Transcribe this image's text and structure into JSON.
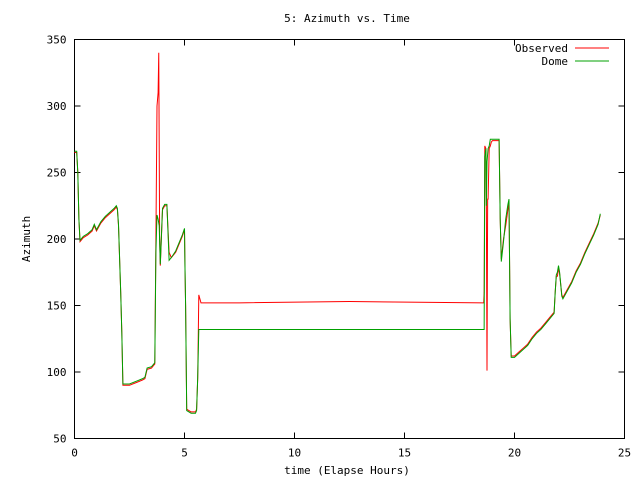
{
  "chart_data": {
    "type": "line",
    "title": "5: Azimuth vs. Time",
    "xlabel": "time (Elapse Hours)",
    "ylabel": "Azimuth",
    "xlim": [
      0,
      25
    ],
    "ylim": [
      50,
      350
    ],
    "xticks": [
      0,
      5,
      10,
      15,
      20,
      25
    ],
    "yticks": [
      50,
      100,
      150,
      200,
      250,
      300,
      350
    ],
    "grid": false,
    "legend_position": "top-right",
    "series": [
      {
        "name": "Observed",
        "color": "#ff0000",
        "points": [
          [
            0,
            265
          ],
          [
            0.1,
            265
          ],
          [
            0.15,
            250
          ],
          [
            0.2,
            215
          ],
          [
            0.25,
            198
          ],
          [
            0.4,
            201
          ],
          [
            0.6,
            203
          ],
          [
            0.8,
            206
          ],
          [
            0.9,
            210
          ],
          [
            1.0,
            206
          ],
          [
            1.2,
            212
          ],
          [
            1.4,
            216
          ],
          [
            1.6,
            219
          ],
          [
            1.8,
            222
          ],
          [
            1.9,
            224
          ],
          [
            1.95,
            222
          ],
          [
            2.0,
            210
          ],
          [
            2.1,
            160
          ],
          [
            2.15,
            130
          ],
          [
            2.2,
            90
          ],
          [
            2.5,
            90
          ],
          [
            2.8,
            92
          ],
          [
            3.1,
            94
          ],
          [
            3.2,
            95
          ],
          [
            3.3,
            102
          ],
          [
            3.5,
            103
          ],
          [
            3.6,
            105
          ],
          [
            3.65,
            106
          ],
          [
            3.7,
            200
          ],
          [
            3.75,
            300
          ],
          [
            3.8,
            310
          ],
          [
            3.83,
            340
          ],
          [
            3.87,
            200
          ],
          [
            3.9,
            180
          ],
          [
            4.0,
            222
          ],
          [
            4.1,
            225
          ],
          [
            4.2,
            225
          ],
          [
            4.3,
            190
          ],
          [
            4.4,
            186
          ],
          [
            4.6,
            190
          ],
          [
            4.8,
            198
          ],
          [
            4.9,
            202
          ],
          [
            5.0,
            207
          ],
          [
            5.02,
            180
          ],
          [
            5.05,
            150
          ],
          [
            5.1,
            72
          ],
          [
            5.3,
            70
          ],
          [
            5.5,
            70
          ],
          [
            5.55,
            72
          ],
          [
            5.6,
            95
          ],
          [
            5.65,
            158
          ],
          [
            5.7,
            155
          ],
          [
            5.75,
            152
          ],
          [
            7.5,
            152
          ],
          [
            12.5,
            153
          ],
          [
            18.6,
            152
          ],
          [
            18.62,
            160
          ],
          [
            18.65,
            270
          ],
          [
            18.7,
            268
          ],
          [
            18.72,
            230
          ],
          [
            18.75,
            101
          ],
          [
            18.78,
            230
          ],
          [
            18.8,
            230
          ],
          [
            18.85,
            268
          ],
          [
            18.9,
            270
          ],
          [
            18.95,
            273
          ],
          [
            19.0,
            274
          ],
          [
            19.3,
            274
          ],
          [
            19.35,
            215
          ],
          [
            19.4,
            185
          ],
          [
            19.5,
            200
          ],
          [
            19.6,
            210
          ],
          [
            19.7,
            222
          ],
          [
            19.75,
            228
          ],
          [
            19.8,
            140
          ],
          [
            19.85,
            112
          ],
          [
            20.0,
            112
          ],
          [
            20.2,
            115
          ],
          [
            20.4,
            118
          ],
          [
            20.6,
            121
          ],
          [
            20.8,
            126
          ],
          [
            21.0,
            130
          ],
          [
            21.2,
            133
          ],
          [
            21.4,
            137
          ],
          [
            21.6,
            141
          ],
          [
            21.8,
            145
          ],
          [
            21.85,
            160
          ],
          [
            21.9,
            172
          ],
          [
            21.95,
            172
          ],
          [
            22.0,
            178
          ],
          [
            22.05,
            174
          ],
          [
            22.1,
            166
          ],
          [
            22.15,
            158
          ],
          [
            22.2,
            156
          ],
          [
            22.4,
            162
          ],
          [
            22.6,
            168
          ],
          [
            22.8,
            176
          ],
          [
            23.0,
            182
          ],
          [
            23.2,
            190
          ],
          [
            23.4,
            197
          ],
          [
            23.6,
            204
          ],
          [
            23.8,
            212
          ],
          [
            23.9,
            218
          ]
        ]
      },
      {
        "name": "Dome",
        "color": "#00a000",
        "points": [
          [
            0,
            266
          ],
          [
            0.1,
            266
          ],
          [
            0.15,
            250
          ],
          [
            0.2,
            215
          ],
          [
            0.25,
            199
          ],
          [
            0.4,
            202
          ],
          [
            0.6,
            204
          ],
          [
            0.8,
            207
          ],
          [
            0.9,
            211
          ],
          [
            1.0,
            207
          ],
          [
            1.2,
            213
          ],
          [
            1.4,
            217
          ],
          [
            1.6,
            220
          ],
          [
            1.8,
            223
          ],
          [
            1.9,
            225
          ],
          [
            1.95,
            223
          ],
          [
            2.0,
            211
          ],
          [
            2.1,
            160
          ],
          [
            2.15,
            130
          ],
          [
            2.2,
            91
          ],
          [
            2.5,
            91
          ],
          [
            2.8,
            93
          ],
          [
            3.1,
            95
          ],
          [
            3.2,
            96
          ],
          [
            3.3,
            103
          ],
          [
            3.5,
            104
          ],
          [
            3.6,
            106
          ],
          [
            3.65,
            107
          ],
          [
            3.7,
            190
          ],
          [
            3.75,
            218
          ],
          [
            3.8,
            215
          ],
          [
            3.85,
            210
          ],
          [
            3.9,
            181
          ],
          [
            4.0,
            223
          ],
          [
            4.1,
            226
          ],
          [
            4.2,
            226
          ],
          [
            4.3,
            184
          ],
          [
            4.4,
            186
          ],
          [
            4.6,
            191
          ],
          [
            4.8,
            199
          ],
          [
            4.9,
            203
          ],
          [
            5.0,
            208
          ],
          [
            5.02,
            181
          ],
          [
            5.05,
            150
          ],
          [
            5.1,
            71
          ],
          [
            5.3,
            69
          ],
          [
            5.5,
            69
          ],
          [
            5.55,
            71
          ],
          [
            5.6,
            96
          ],
          [
            5.65,
            132
          ],
          [
            18.62,
            132
          ],
          [
            18.65,
            262
          ],
          [
            18.7,
            268
          ],
          [
            18.72,
            225
          ],
          [
            18.75,
            258
          ],
          [
            18.8,
            268
          ],
          [
            18.85,
            270
          ],
          [
            18.9,
            275
          ],
          [
            19.3,
            275
          ],
          [
            19.35,
            215
          ],
          [
            19.4,
            183
          ],
          [
            19.5,
            198
          ],
          [
            19.6,
            215
          ],
          [
            19.7,
            226
          ],
          [
            19.75,
            230
          ],
          [
            19.8,
            140
          ],
          [
            19.85,
            111
          ],
          [
            20.0,
            111
          ],
          [
            20.2,
            114
          ],
          [
            20.4,
            117
          ],
          [
            20.6,
            120
          ],
          [
            20.8,
            125
          ],
          [
            21.0,
            129
          ],
          [
            21.2,
            132
          ],
          [
            21.4,
            136
          ],
          [
            21.6,
            140
          ],
          [
            21.8,
            144
          ],
          [
            21.85,
            160
          ],
          [
            21.9,
            173
          ],
          [
            21.95,
            175
          ],
          [
            22.0,
            180
          ],
          [
            22.05,
            175
          ],
          [
            22.1,
            166
          ],
          [
            22.15,
            157
          ],
          [
            22.2,
            155
          ],
          [
            22.4,
            161
          ],
          [
            22.6,
            167
          ],
          [
            22.8,
            175
          ],
          [
            23.0,
            181
          ],
          [
            23.2,
            189
          ],
          [
            23.4,
            196
          ],
          [
            23.6,
            203
          ],
          [
            23.8,
            211
          ],
          [
            23.9,
            219
          ]
        ]
      }
    ]
  }
}
